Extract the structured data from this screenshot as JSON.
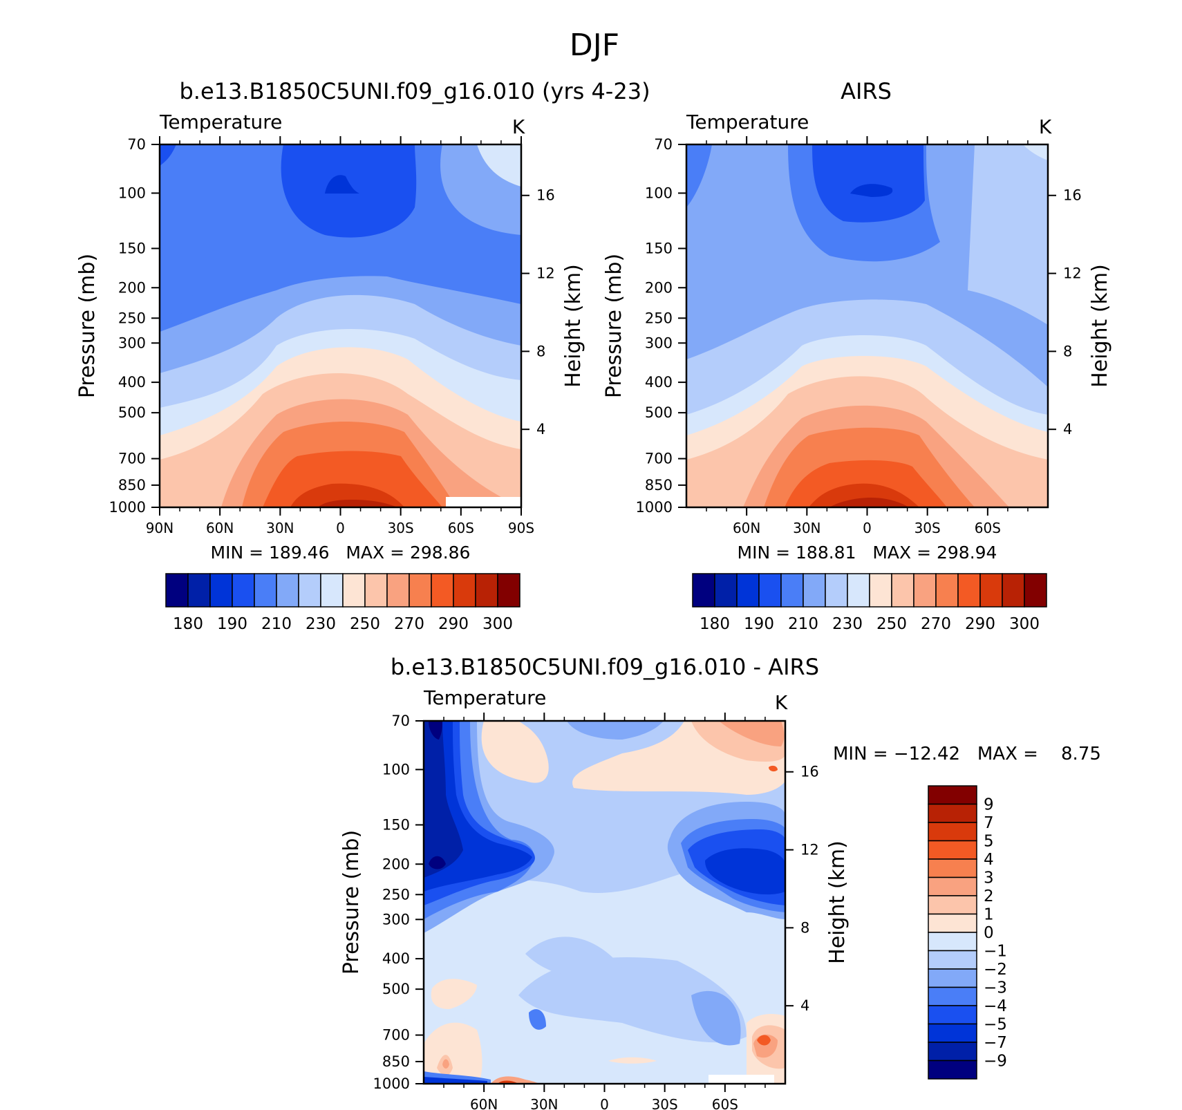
{
  "page": {
    "title": "DJF"
  },
  "chart_data": [
    {
      "type": "contour",
      "id": "model",
      "title": "b.e13.B1850C5UNI.f09_g16.010 (yrs 4-23)",
      "left_string": "Temperature",
      "right_string": "K",
      "ylabel": "Pressure (mb)",
      "ylabel_right": "Height (km)",
      "x_ticks": [
        "90N",
        "60N",
        "30N",
        "0",
        "30S",
        "60S",
        "90S"
      ],
      "y_ticks": [
        "70",
        "100",
        "150",
        "200",
        "250",
        "300",
        "400",
        "500",
        "700",
        "850",
        "1000"
      ],
      "y_ticks_right": [
        "16",
        "12",
        "8",
        "4"
      ],
      "xlim": [
        90,
        -90
      ],
      "ylim_mb": [
        1000,
        70
      ],
      "stats": "MIN = 189.46   MAX = 298.86",
      "colorbar_labels": [
        "180",
        "190",
        "210",
        "230",
        "250",
        "270",
        "290",
        "300"
      ],
      "colorbar_colors": [
        "#00007f",
        "#0020a8",
        "#0034d8",
        "#1a50f0",
        "#4a7ef7",
        "#82a9f8",
        "#b4cdfb",
        "#d7e7fc",
        "#fde4d4",
        "#fcc5ab",
        "#f9a280",
        "#f7804f",
        "#f35a24",
        "#d93a0c",
        "#b82205",
        "#820000"
      ]
    },
    {
      "type": "contour",
      "id": "obs",
      "title": "AIRS",
      "left_string": "Temperature",
      "right_string": "K",
      "ylabel": "Pressure (mb)",
      "ylabel_right": "Height (km)",
      "x_ticks": [
        "60N",
        "30N",
        "0",
        "30S",
        "60S"
      ],
      "y_ticks": [
        "70",
        "100",
        "150",
        "200",
        "250",
        "300",
        "400",
        "500",
        "700",
        "850",
        "1000"
      ],
      "y_ticks_right": [
        "16",
        "12",
        "8",
        "4"
      ],
      "stats": "MIN = 188.81   MAX = 298.94",
      "colorbar_labels": [
        "180",
        "190",
        "210",
        "230",
        "250",
        "270",
        "290",
        "300"
      ]
    },
    {
      "type": "contour",
      "id": "diff",
      "title": "b.e13.B1850C5UNI.f09_g16.010 - AIRS",
      "left_string": "Temperature",
      "right_string": "K",
      "ylabel": "Pressure (mb)",
      "ylabel_right": "Height (km)",
      "x_ticks": [
        "60N",
        "30N",
        "0",
        "30S",
        "60S"
      ],
      "y_ticks": [
        "70",
        "100",
        "150",
        "200",
        "250",
        "300",
        "400",
        "500",
        "700",
        "850",
        "1000"
      ],
      "y_ticks_right": [
        "16",
        "12",
        "8",
        "4"
      ],
      "stats": "MIN = −12.42   MAX =    8.75",
      "colorbar_labels": [
        "9",
        "7",
        "5",
        "4",
        "3",
        "2",
        "1",
        "0",
        "−1",
        "−2",
        "−3",
        "−4",
        "−5",
        "−7",
        "−9"
      ],
      "colorbar_colors": [
        "#820000",
        "#b82205",
        "#d93a0c",
        "#f35a24",
        "#f7804f",
        "#f9a280",
        "#fcc5ab",
        "#fde4d4",
        "#d7e7fc",
        "#b4cdfb",
        "#82a9f8",
        "#4a7ef7",
        "#1a50f0",
        "#0034d8",
        "#0020a8",
        "#00007f"
      ]
    }
  ]
}
